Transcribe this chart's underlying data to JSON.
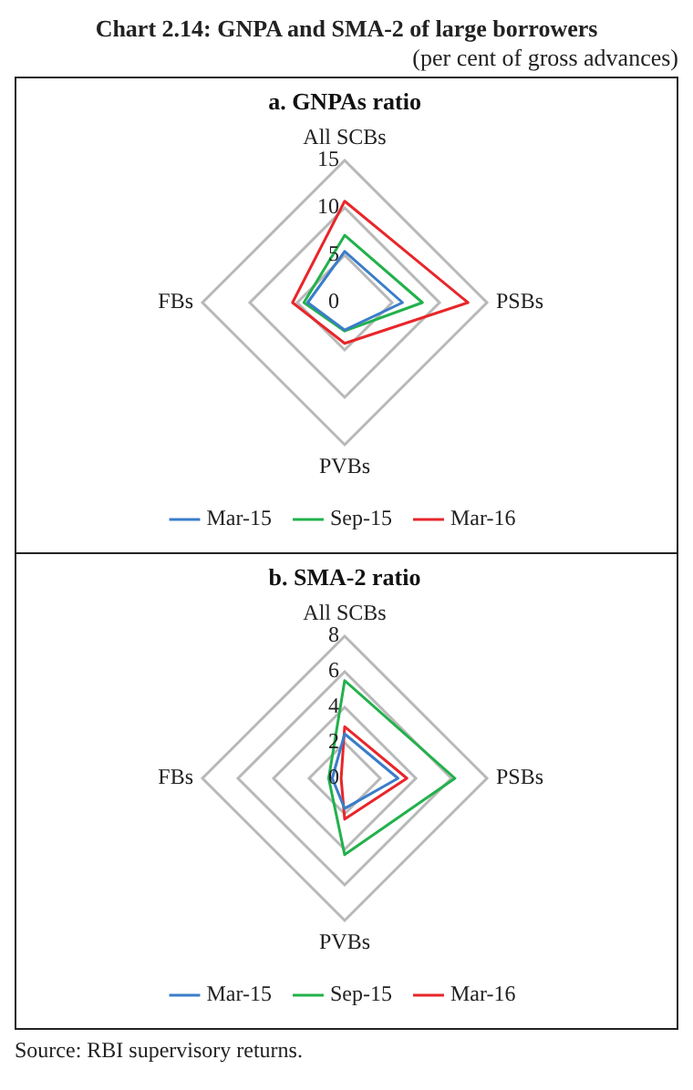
{
  "chart_data": [
    {
      "type": "radar",
      "title": "a. GNPAs ratio",
      "annotations": [
        "Chart 2.14: GNPA and SMA-2 of large borrowers",
        "(per cent of gross advances)"
      ],
      "categories": [
        "All SCBs",
        "PSBs",
        "PVBs",
        "FBs"
      ],
      "ylim": [
        0,
        15
      ],
      "yticks": [
        0,
        5,
        10,
        15
      ],
      "grid": true,
      "legend": "bottom",
      "marker": "none",
      "series": [
        {
          "name": "Mar-15",
          "color": "#3a7dc9",
          "values": [
            5.4,
            6.1,
            2.9,
            3.9
          ]
        },
        {
          "name": "Sep-15",
          "color": "#22b14c",
          "values": [
            7.1,
            8.2,
            3.0,
            4.3
          ]
        },
        {
          "name": "Mar-16",
          "color": "#e8262a",
          "values": [
            10.7,
            13.0,
            4.3,
            5.5
          ]
        }
      ]
    },
    {
      "type": "radar",
      "title": "b. SMA-2 ratio",
      "annotations": [
        "Source: RBI supervisory returns."
      ],
      "categories": [
        "All SCBs",
        "PSBs",
        "PVBs",
        "FBs"
      ],
      "ylim": [
        0,
        8
      ],
      "yticks": [
        0,
        2,
        4,
        6,
        8
      ],
      "grid": true,
      "legend": "bottom",
      "marker": "none",
      "series": [
        {
          "name": "Mar-15",
          "color": "#3a7dc9",
          "values": [
            2.5,
            3.0,
            1.7,
            0.7
          ]
        },
        {
          "name": "Sep-15",
          "color": "#22b14c",
          "values": [
            5.5,
            6.2,
            4.3,
            0.9
          ]
        },
        {
          "name": "Mar-16",
          "color": "#e8262a",
          "values": [
            2.9,
            3.5,
            2.3,
            0.2
          ]
        }
      ]
    }
  ]
}
